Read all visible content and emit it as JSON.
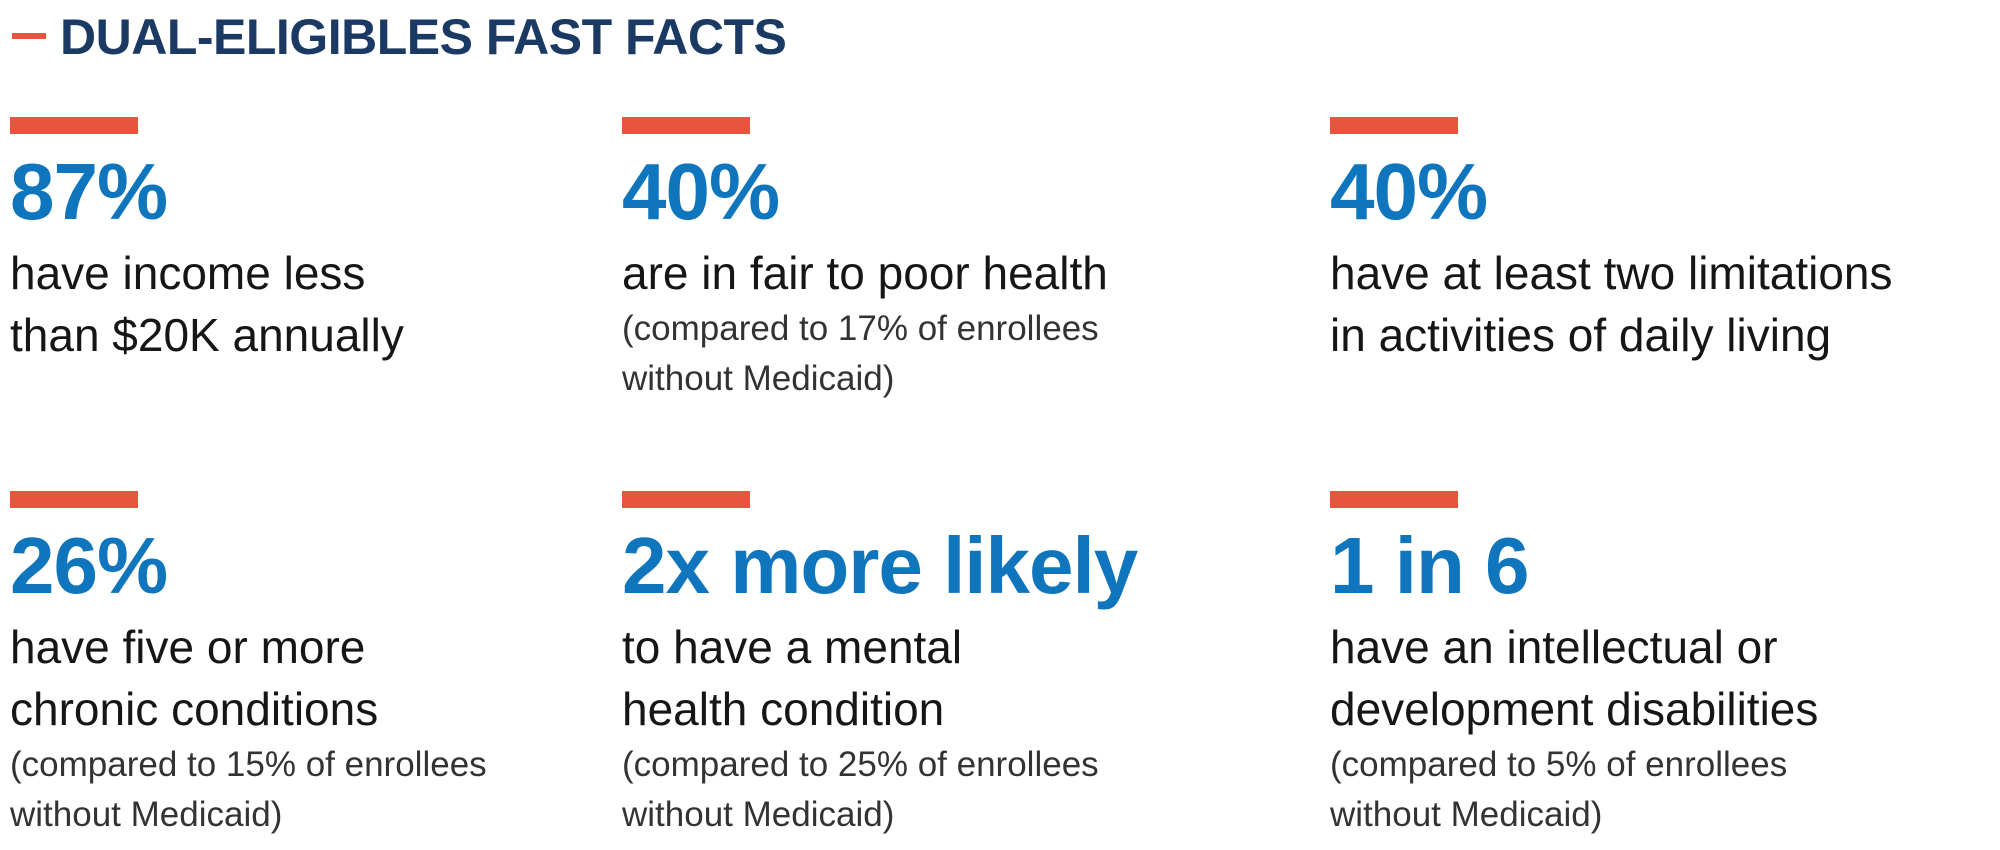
{
  "header": {
    "title": "DUAL-ELIGIBLES FAST FACTS"
  },
  "facts": [
    {
      "stat": "87%",
      "text": [
        "have income less",
        "than $20K annually"
      ]
    },
    {
      "stat": "40%",
      "text": [
        "are in fair to poor health"
      ],
      "note": [
        "(compared to 17% of enrollees",
        "without Medicaid)"
      ]
    },
    {
      "stat": "40%",
      "text": [
        "have at least two limitations",
        "in activities of daily living"
      ]
    },
    {
      "stat": "26%",
      "text": [
        "have five or more",
        "chronic conditions"
      ],
      "note": [
        "(compared to 15% of enrollees",
        "without Medicaid)"
      ]
    },
    {
      "stat": "2x more likely",
      "text": [
        "to have a mental",
        "health condition"
      ],
      "note": [
        "(compared to 25% of enrollees",
        "without Medicaid)"
      ]
    },
    {
      "stat": "1 in 6",
      "text": [
        "have an intellectual or",
        "development disabilities"
      ],
      "note": [
        "(compared to 5% of enrollees",
        "without Medicaid)"
      ]
    }
  ]
}
